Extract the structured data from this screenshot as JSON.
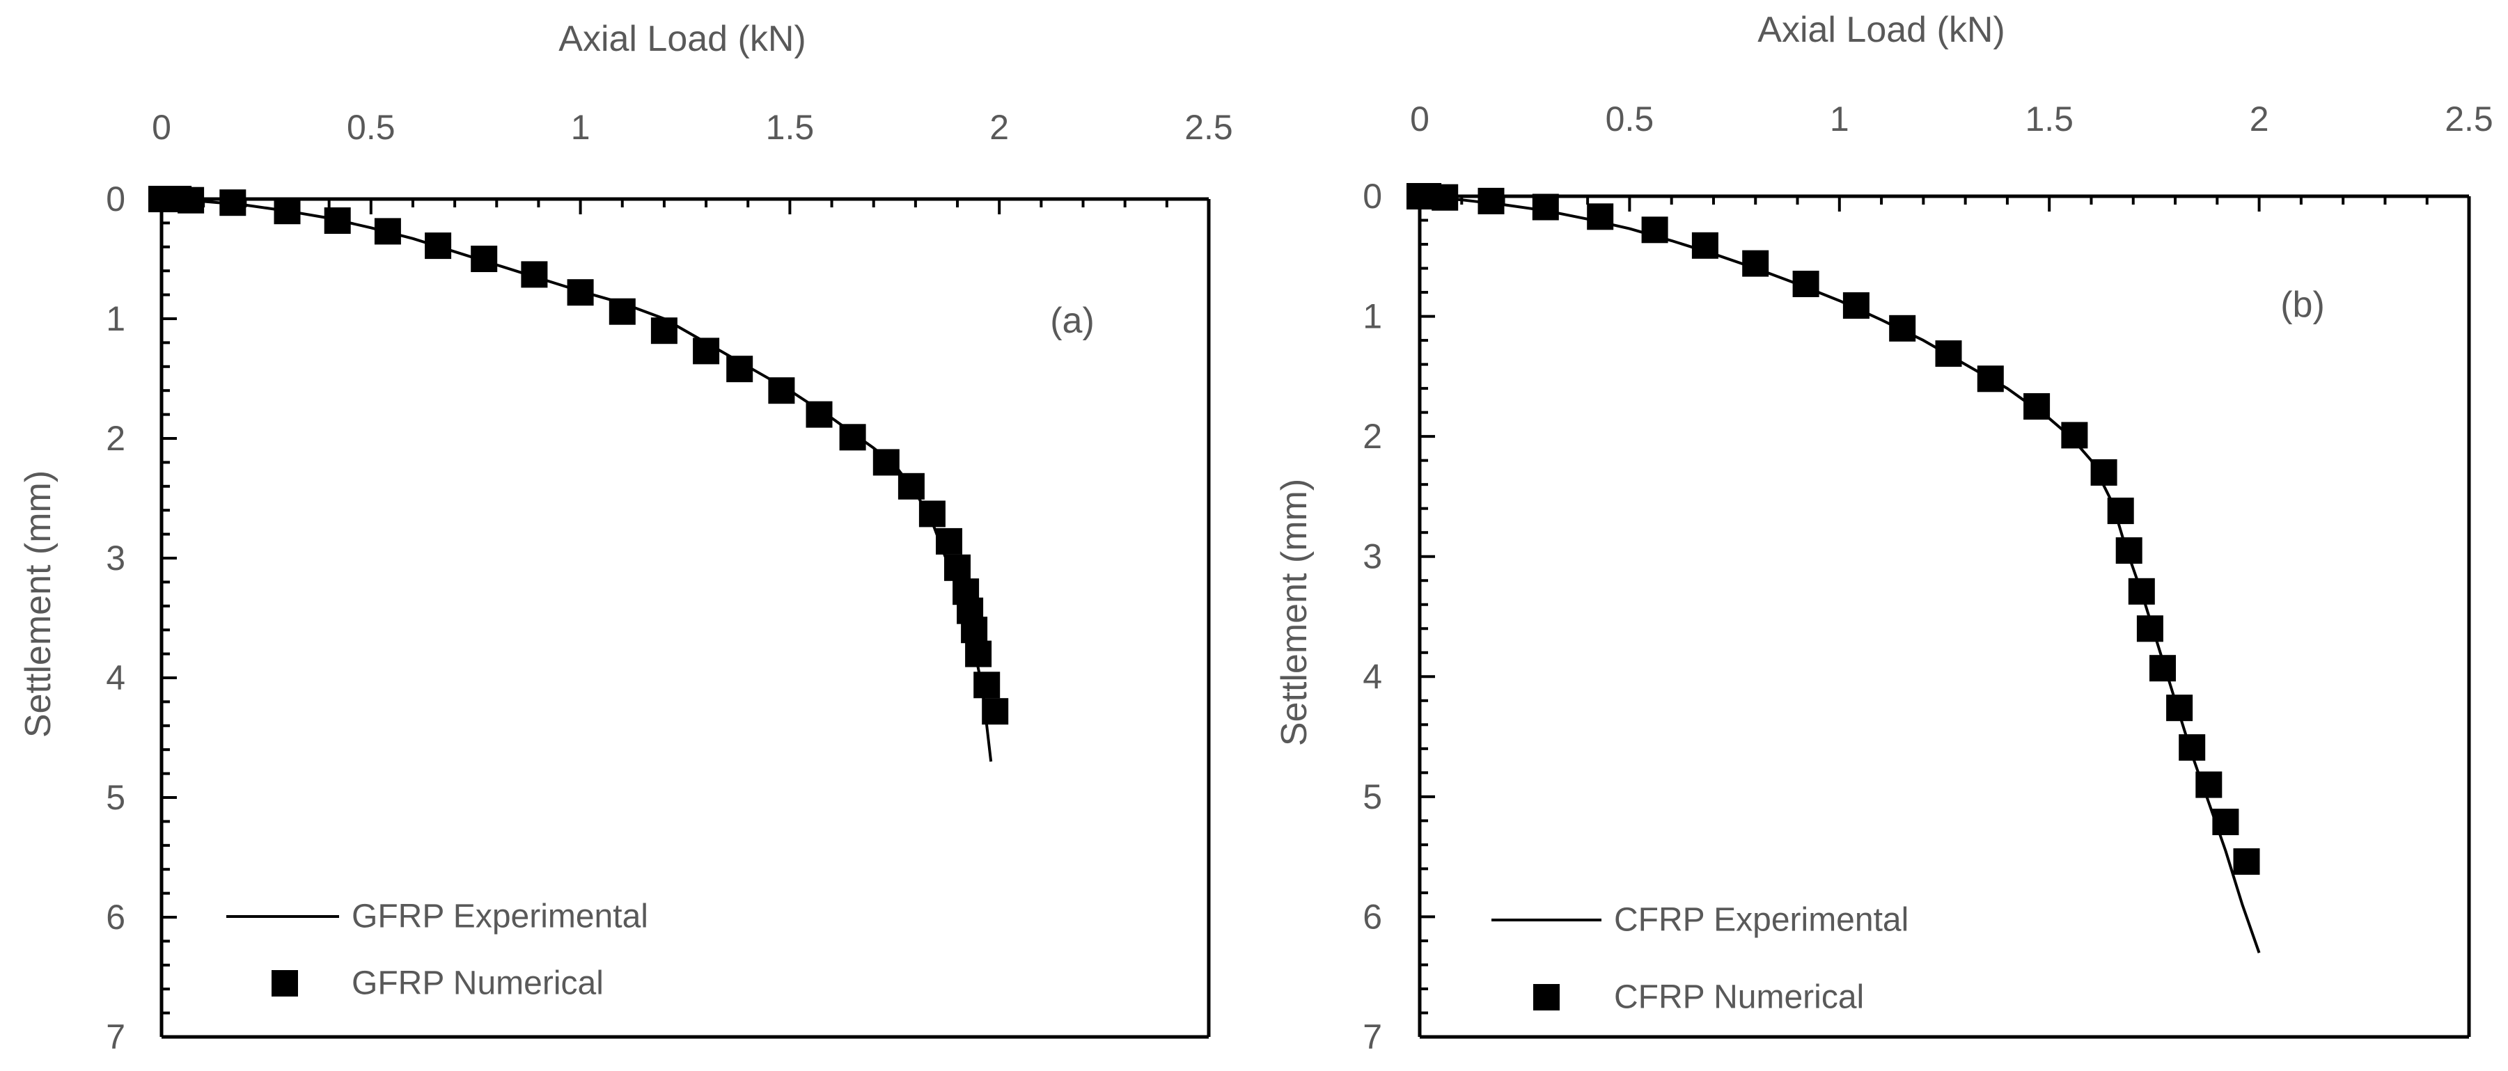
{
  "chart_data": [
    {
      "type": "scatter",
      "panel_label": "(a)",
      "xlabel": "Axial Load (kN)",
      "ylabel": "Settlement (mm)",
      "xlim": [
        0,
        2.5
      ],
      "ylim": [
        0,
        7
      ],
      "y_inverted": true,
      "x_axis_position": "top",
      "x_ticks": [
        "0",
        "0.5",
        "1",
        "1.5",
        "2",
        "2.5"
      ],
      "y_ticks": [
        "0",
        "1",
        "2",
        "3",
        "4",
        "5",
        "6",
        "7"
      ],
      "legend_position": "bottom-left",
      "series": [
        {
          "name": "GFRP Experimental",
          "style": "line",
          "color": "#000000",
          "x": [
            0,
            0.1,
            0.2,
            0.3,
            0.4,
            0.5,
            0.6,
            0.7,
            0.8,
            0.9,
            1.0,
            1.1,
            1.2,
            1.3,
            1.4,
            1.5,
            1.6,
            1.7,
            1.75,
            1.8,
            1.84,
            1.87,
            1.9,
            1.92,
            1.94,
            1.96,
            1.97,
            1.98
          ],
          "y": [
            0,
            0.02,
            0.05,
            0.1,
            0.16,
            0.24,
            0.33,
            0.44,
            0.55,
            0.66,
            0.77,
            0.87,
            1.0,
            1.2,
            1.4,
            1.6,
            1.83,
            2.08,
            2.22,
            2.45,
            2.7,
            2.98,
            3.2,
            3.45,
            3.75,
            4.1,
            4.4,
            4.7
          ]
        },
        {
          "name": "GFRP Numerical",
          "style": "marker",
          "marker": "square",
          "color": "#000000",
          "x": [
            0,
            0.02,
            0.04,
            0.07,
            0.17,
            0.3,
            0.42,
            0.54,
            0.66,
            0.77,
            0.89,
            1.0,
            1.1,
            1.2,
            1.3,
            1.38,
            1.48,
            1.57,
            1.65,
            1.73,
            1.79,
            1.84,
            1.88,
            1.9,
            1.92,
            1.93,
            1.94,
            1.95,
            1.97,
            1.99
          ],
          "y": [
            0,
            0,
            0,
            0.01,
            0.03,
            0.1,
            0.18,
            0.27,
            0.39,
            0.5,
            0.63,
            0.78,
            0.94,
            1.1,
            1.27,
            1.42,
            1.6,
            1.8,
            1.99,
            2.2,
            2.4,
            2.63,
            2.86,
            3.08,
            3.28,
            3.44,
            3.6,
            3.8,
            4.06,
            4.28
          ]
        }
      ]
    },
    {
      "type": "scatter",
      "panel_label": "(b)",
      "xlabel": "Axial Load (kN)",
      "ylabel": "Settlement (mm)",
      "xlim": [
        0,
        2.5
      ],
      "ylim": [
        0,
        7
      ],
      "y_inverted": true,
      "x_axis_position": "top",
      "x_ticks": [
        "0",
        "0.5",
        "1",
        "1.5",
        "2",
        "2.5"
      ],
      "y_ticks": [
        "0",
        "1",
        "2",
        "3",
        "4",
        "5",
        "6",
        "7"
      ],
      "legend_position": "bottom-left",
      "series": [
        {
          "name": "CFRP Experimental",
          "style": "line",
          "color": "#000000",
          "x": [
            0,
            0.1,
            0.2,
            0.3,
            0.4,
            0.5,
            0.6,
            0.7,
            0.8,
            0.9,
            1.0,
            1.1,
            1.2,
            1.3,
            1.4,
            1.5,
            1.55,
            1.6,
            1.65,
            1.68,
            1.72,
            1.76,
            1.8,
            1.84,
            1.88,
            1.92,
            1.96,
            2.0
          ],
          "y": [
            0,
            0.03,
            0.07,
            0.12,
            0.19,
            0.27,
            0.37,
            0.48,
            0.6,
            0.73,
            0.87,
            1.03,
            1.2,
            1.4,
            1.6,
            1.85,
            2.0,
            2.2,
            2.55,
            2.9,
            3.3,
            3.75,
            4.2,
            4.65,
            5.05,
            5.45,
            5.9,
            6.3
          ]
        },
        {
          "name": "CFRP Numerical",
          "style": "marker",
          "marker": "square",
          "color": "#000000",
          "x": [
            0,
            0.02,
            0.06,
            0.17,
            0.3,
            0.43,
            0.56,
            0.68,
            0.8,
            0.92,
            1.04,
            1.15,
            1.26,
            1.36,
            1.47,
            1.56,
            1.63,
            1.67,
            1.69,
            1.72,
            1.74,
            1.77,
            1.81,
            1.84,
            1.88,
            1.92,
            1.97
          ],
          "y": [
            0,
            0,
            0.01,
            0.04,
            0.09,
            0.17,
            0.28,
            0.41,
            0.56,
            0.73,
            0.91,
            1.1,
            1.31,
            1.52,
            1.75,
            1.99,
            2.3,
            2.62,
            2.95,
            3.29,
            3.6,
            3.93,
            4.26,
            4.59,
            4.9,
            5.21,
            5.54
          ]
        }
      ]
    }
  ]
}
